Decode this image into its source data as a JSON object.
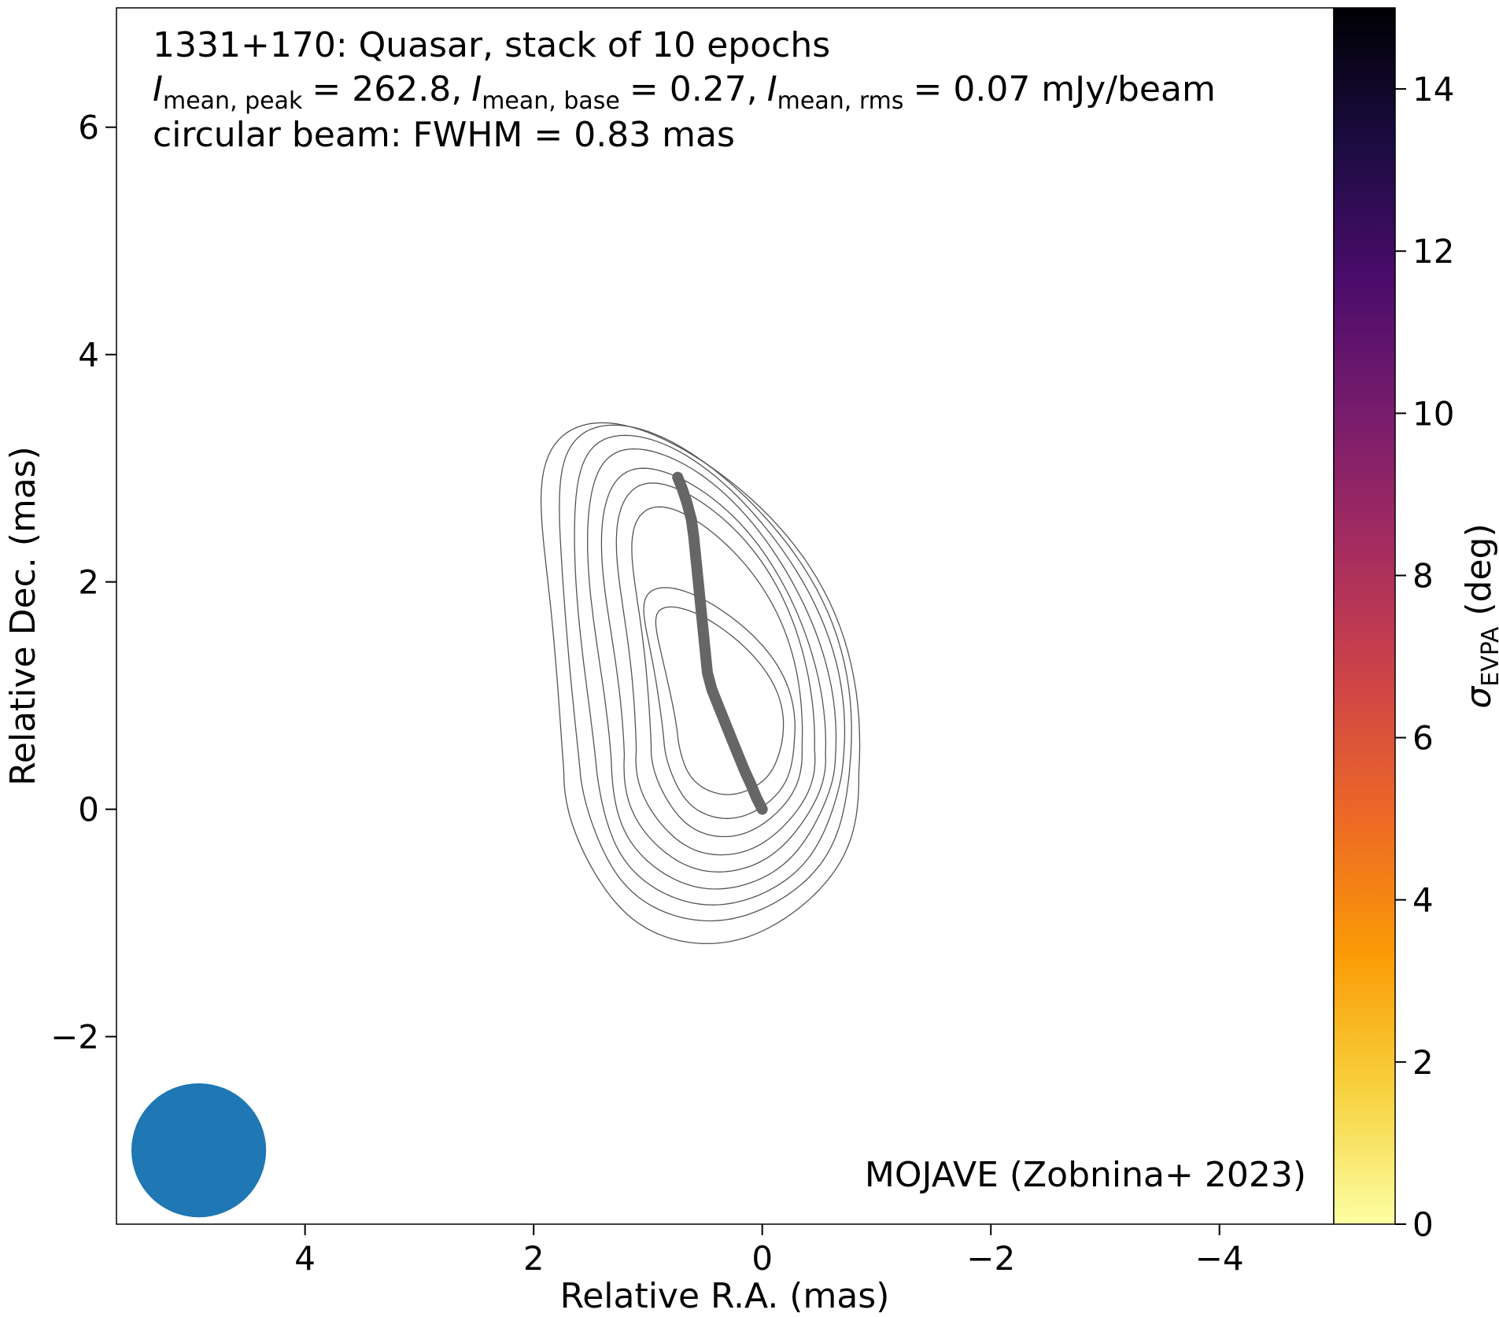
{
  "chart_data": {
    "type": "image-contour",
    "title_lines": [
      "1331+170: Quasar, stack of 10 epochs",
      "circular beam: FWHM = 0.83 mas"
    ],
    "stats_line": {
      "peak_symbol": "I",
      "peak_sub": "mean, peak",
      "peak_value": "= 262.8,",
      "base_symbol": "I",
      "base_sub": "mean, base",
      "base_value": "= 0.27,",
      "rms_symbol": "I",
      "rms_sub": "mean, rms",
      "rms_value": "= 0.07 mJy/beam"
    },
    "xlabel": "Relative R.A. (mas)",
    "ylabel": "Relative Dec. (mas)",
    "xlim": [
      5.65,
      -5.0
    ],
    "ylim": [
      -3.65,
      7.05
    ],
    "x_ticks": [
      4,
      2,
      0,
      -2,
      -4
    ],
    "x_tick_labels": [
      "4",
      "2",
      "0",
      "−2",
      "−4"
    ],
    "y_ticks": [
      -2,
      0,
      2,
      4,
      6
    ],
    "y_tick_labels": [
      "−2",
      "0",
      "2",
      "4",
      "6"
    ],
    "credit": "MOJAVE (Zobnina+ 2023)",
    "beam": {
      "x": 4.93,
      "y": -3.0,
      "fwhm": 0.83,
      "color": "#1f77b4"
    },
    "ridgeline": {
      "color": "#666666",
      "points": [
        [
          0.0,
          0.0
        ],
        [
          0.05,
          0.1
        ],
        [
          0.1,
          0.22
        ],
        [
          0.15,
          0.33
        ],
        [
          0.2,
          0.45
        ],
        [
          0.26,
          0.6
        ],
        [
          0.32,
          0.75
        ],
        [
          0.38,
          0.9
        ],
        [
          0.44,
          1.05
        ],
        [
          0.48,
          1.2
        ],
        [
          0.5,
          1.4
        ],
        [
          0.52,
          1.6
        ],
        [
          0.54,
          1.8
        ],
        [
          0.56,
          2.0
        ],
        [
          0.58,
          2.2
        ],
        [
          0.6,
          2.4
        ],
        [
          0.62,
          2.55
        ],
        [
          0.66,
          2.7
        ],
        [
          0.7,
          2.82
        ],
        [
          0.74,
          2.92
        ]
      ]
    },
    "contours": {
      "color": "#555555",
      "levels": [
        {
          "x0": 0.28,
          "y0": 0.65,
          "top": 1.13,
          "bottom": 0.52,
          "dx": 0.7,
          "tx": 0.52,
          "wx": 0.46
        },
        {
          "x0": 0.28,
          "y0": 0.6,
          "top": 1.35,
          "bottom": 0.68,
          "dx": 0.82,
          "tx": 0.57,
          "wx": 0.57
        },
        {
          "x0": 0.3,
          "y0": 0.56,
          "top": 2.1,
          "bottom": 0.8,
          "dx": 0.9,
          "tx": 0.6,
          "wx": 0.66
        },
        {
          "x0": 0.32,
          "y0": 0.52,
          "top": 2.35,
          "bottom": 0.92,
          "dx": 0.98,
          "tx": 0.64,
          "wx": 0.78
        },
        {
          "x0": 0.34,
          "y0": 0.48,
          "top": 2.52,
          "bottom": 1.03,
          "dx": 1.05,
          "tx": 0.7,
          "wx": 0.88
        },
        {
          "x0": 0.36,
          "y0": 0.44,
          "top": 2.73,
          "bottom": 1.14,
          "dx": 1.12,
          "tx": 0.76,
          "wx": 0.98
        },
        {
          "x0": 0.38,
          "y0": 0.4,
          "top": 2.89,
          "bottom": 1.24,
          "dx": 1.2,
          "tx": 0.82,
          "wx": 1.08
        },
        {
          "x0": 0.4,
          "y0": 0.36,
          "top": 3.02,
          "bottom": 1.34,
          "dx": 1.27,
          "tx": 0.9,
          "wx": 1.18
        },
        {
          "x0": 0.42,
          "y0": 0.32,
          "top": 3.08,
          "bottom": 1.5,
          "dx": 1.34,
          "tx": 0.98,
          "wx": 1.29
        }
      ]
    },
    "colorbar": {
      "label_symbol": "σ",
      "label_sub": "EVPA",
      "label_unit": "(deg)",
      "vmin": 0,
      "vmax": 15,
      "ticks": [
        0,
        2,
        4,
        6,
        8,
        10,
        12,
        14
      ],
      "tick_labels": [
        "0",
        "2",
        "4",
        "6",
        "8",
        "10",
        "12",
        "14"
      ],
      "colormap": "inferno_r",
      "stops": [
        "#fcffa4",
        "#f7d13d",
        "#fb9b06",
        "#ed6925",
        "#cf4446",
        "#a52c60",
        "#781c6d",
        "#4a0c6b",
        "#1b0c41",
        "#000004"
      ]
    }
  }
}
